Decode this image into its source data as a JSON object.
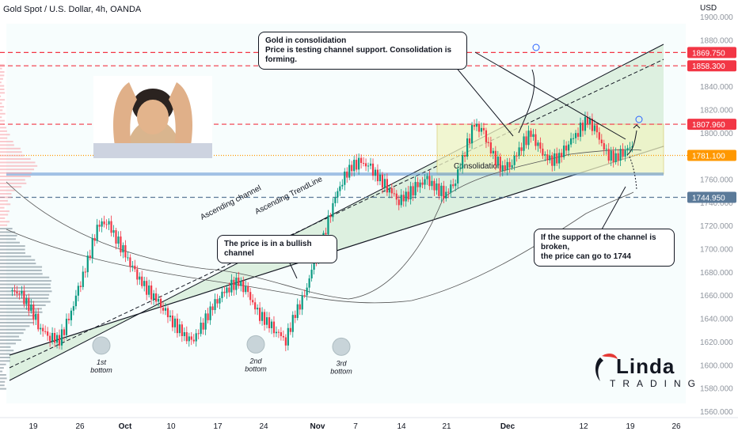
{
  "header": {
    "title": "Gold Spot / U.S. Dollar, 4h, OANDA",
    "currency": "USD"
  },
  "chart_data": {
    "type": "candlestick",
    "symbol": "Gold Spot / U.S. Dollar",
    "interval": "4h",
    "source": "OANDA",
    "ylim": [
      1555,
      1910
    ],
    "y_ticks": [
      1560,
      1580,
      1600,
      1620,
      1640,
      1660,
      1680,
      1700,
      1720,
      1740,
      1760,
      1780,
      1800,
      1820,
      1840,
      1860,
      1880,
      1900
    ],
    "x_ticks": [
      "19",
      "26",
      "Oct",
      "10",
      "17",
      "24",
      "Nov",
      "7",
      "14",
      "21",
      "Dec",
      "12",
      "19",
      "26"
    ],
    "price_levels": [
      {
        "label": "1869.750",
        "value": 1869.75,
        "color": "#f23645",
        "style": "dashed"
      },
      {
        "label": "1858.300",
        "value": 1858.3,
        "color": "#f23645",
        "style": "dashed"
      },
      {
        "label": "1807.960",
        "value": 1807.96,
        "color": "#f23645",
        "style": "dashed"
      },
      {
        "label": "1781.100",
        "value": 1781.1,
        "color": "#ff9800",
        "style": "dotted"
      },
      {
        "label": "1744.950",
        "value": 1744.95,
        "color": "#5b7a99",
        "style": "dashed"
      }
    ],
    "support_line": {
      "value": 1765,
      "color": "#5b8fd1"
    },
    "channel_labels": [
      "Ascending channel",
      "Ascending TrendLine"
    ],
    "consolidation": {
      "label": "Consolidation",
      "top": 1808,
      "bottom": 1765
    },
    "bottoms": [
      {
        "label": "1st",
        "sub": "bottom",
        "value": 1620
      },
      {
        "label": "2nd",
        "sub": "bottom",
        "value": 1621
      },
      {
        "label": "3rd",
        "sub": "bottom",
        "value": 1619
      }
    ],
    "approx_close_path": [
      1665,
      1660,
      1648,
      1632,
      1625,
      1622,
      1640,
      1665,
      1690,
      1720,
      1725,
      1710,
      1695,
      1680,
      1668,
      1660,
      1650,
      1638,
      1628,
      1620,
      1632,
      1648,
      1660,
      1668,
      1672,
      1662,
      1645,
      1638,
      1630,
      1622,
      1645,
      1660,
      1690,
      1710,
      1740,
      1760,
      1772,
      1775,
      1770,
      1760,
      1752,
      1742,
      1748,
      1755,
      1760,
      1752,
      1748,
      1760,
      1785,
      1808,
      1800,
      1780,
      1770,
      1775,
      1790,
      1800,
      1785,
      1776,
      1780,
      1792,
      1802,
      1812,
      1800,
      1782,
      1779,
      1786,
      1790
    ],
    "colors": {
      "up": "#089981",
      "down": "#f23645",
      "channel_fill": "#c8e6c9",
      "consolidation_fill": "#f0f4c3",
      "callout_border": "#131722"
    }
  },
  "callouts": {
    "consolidation": {
      "line1": "Gold in consolidation",
      "line2": "Price is testing channel support. Consolidation is forming."
    },
    "bullish": "The price is in a bullish channel",
    "support": {
      "line1": "If the support of the channel is broken,",
      "line2": "the price can go to 1744"
    }
  },
  "logo": {
    "name": "Linda",
    "sub": "TRADING"
  }
}
